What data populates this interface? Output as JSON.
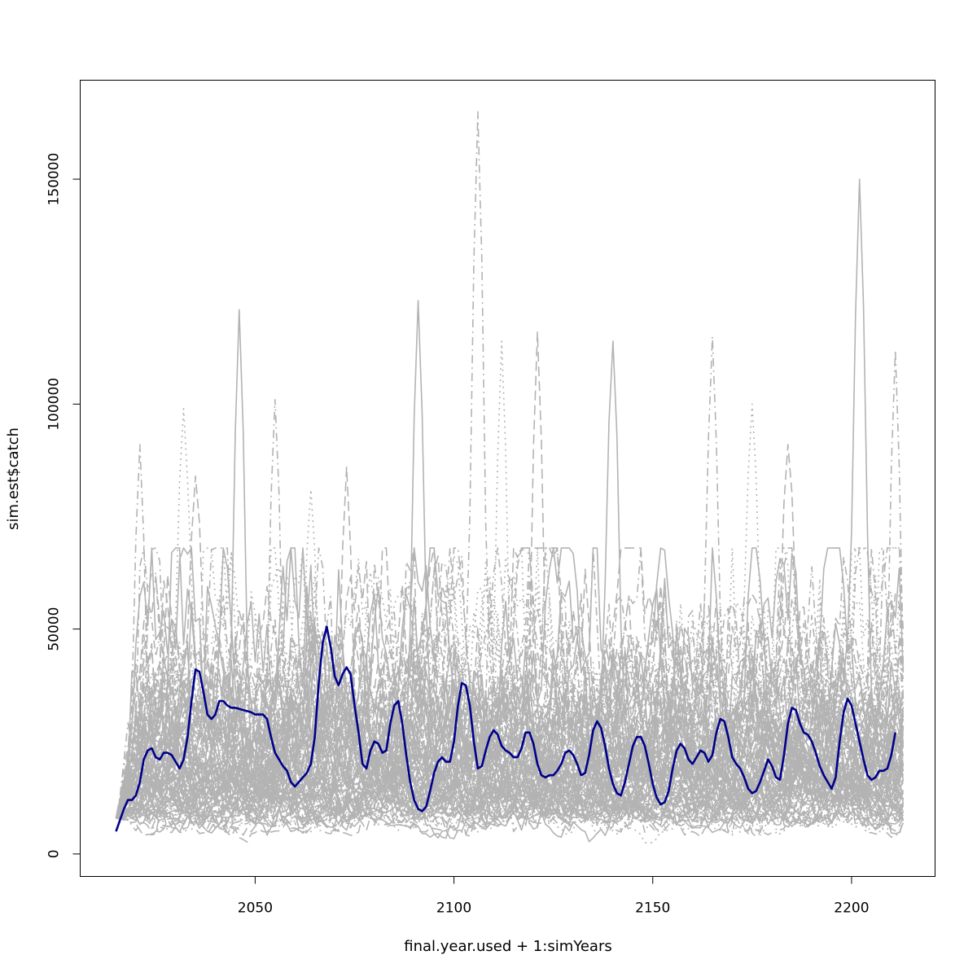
{
  "chart_data": {
    "type": "line",
    "title": "",
    "xlabel": "final.year.used + 1:simYears",
    "ylabel": "sim.est$catch",
    "xlim": [
      2006,
      2221
    ],
    "ylim": [
      -5000,
      172000
    ],
    "x_ticks": [
      2050,
      2100,
      2150,
      2200
    ],
    "y_ticks": [
      0,
      50000,
      100000,
      150000
    ],
    "x_tick_labels": [
      "2050",
      "2100",
      "2150",
      "2200"
    ],
    "y_tick_labels": [
      "0",
      "50000",
      "100000",
      "150000"
    ],
    "x_start": 2015,
    "x_end": 2213,
    "grid": false,
    "legend": "none",
    "colors": {
      "simulations": "#b3b3b3",
      "highlight": "#00008b",
      "axis": "#000000"
    },
    "background_series": {
      "count": 100,
      "color": "#b3b3b3",
      "line_styles": [
        "solid",
        "dashed",
        "dotted",
        "dashdot"
      ],
      "typical_range": [
        3000,
        60000
      ],
      "notable_peaks": [
        {
          "x": 2021,
          "y": 91000
        },
        {
          "x": 2032,
          "y": 99000
        },
        {
          "x": 2035,
          "y": 84000
        },
        {
          "x": 2046,
          "y": 121000
        },
        {
          "x": 2055,
          "y": 101000
        },
        {
          "x": 2064,
          "y": 81000
        },
        {
          "x": 2073,
          "y": 86000
        },
        {
          "x": 2091,
          "y": 123000
        },
        {
          "x": 2106,
          "y": 165000
        },
        {
          "x": 2112,
          "y": 114000
        },
        {
          "x": 2121,
          "y": 116000
        },
        {
          "x": 2140,
          "y": 114000
        },
        {
          "x": 2165,
          "y": 115000
        },
        {
          "x": 2175,
          "y": 100000
        },
        {
          "x": 2184,
          "y": 91000
        },
        {
          "x": 2202,
          "y": 150000
        },
        {
          "x": 2211,
          "y": 112000
        }
      ]
    },
    "series": [
      {
        "values": [
          [
            2015,
            5000
          ],
          [
            2017,
            10000
          ],
          [
            2018,
            12000
          ],
          [
            2019,
            12000
          ],
          [
            2020,
            13000
          ],
          [
            2021,
            16000
          ],
          [
            2022,
            21000
          ],
          [
            2023,
            23000
          ],
          [
            2024,
            23500
          ],
          [
            2025,
            21500
          ],
          [
            2026,
            21000
          ],
          [
            2027,
            22500
          ],
          [
            2028,
            22500
          ],
          [
            2029,
            22000
          ],
          [
            2030,
            20500
          ],
          [
            2031,
            19000
          ],
          [
            2032,
            21000
          ],
          [
            2033,
            26000
          ],
          [
            2034,
            34000
          ],
          [
            2035,
            41000
          ],
          [
            2036,
            40500
          ],
          [
            2037,
            36000
          ],
          [
            2038,
            31000
          ],
          [
            2039,
            30000
          ],
          [
            2040,
            31000
          ],
          [
            2041,
            34000
          ],
          [
            2042,
            34000
          ],
          [
            2043,
            33000
          ],
          [
            2044,
            32500
          ],
          [
            2045,
            32500
          ],
          [
            2047,
            32000
          ],
          [
            2049,
            31500
          ],
          [
            2050,
            31000
          ],
          [
            2052,
            31000
          ],
          [
            2053,
            30000
          ],
          [
            2054,
            26000
          ],
          [
            2055,
            22500
          ],
          [
            2056,
            21000
          ],
          [
            2057,
            19500
          ],
          [
            2058,
            18500
          ],
          [
            2059,
            16000
          ],
          [
            2060,
            15000
          ],
          [
            2062,
            17000
          ],
          [
            2063,
            18000
          ],
          [
            2064,
            20000
          ],
          [
            2065,
            26000
          ],
          [
            2066,
            38000
          ],
          [
            2067,
            47000
          ],
          [
            2068,
            50500
          ],
          [
            2069,
            46000
          ],
          [
            2070,
            39500
          ],
          [
            2071,
            37500
          ],
          [
            2072,
            40000
          ],
          [
            2073,
            41500
          ],
          [
            2074,
            40000
          ],
          [
            2075,
            33000
          ],
          [
            2076,
            27000
          ],
          [
            2077,
            20000
          ],
          [
            2078,
            19000
          ],
          [
            2079,
            23000
          ],
          [
            2080,
            25000
          ],
          [
            2081,
            24500
          ],
          [
            2082,
            22500
          ],
          [
            2083,
            23000
          ],
          [
            2084,
            29000
          ],
          [
            2085,
            33000
          ],
          [
            2086,
            34000
          ],
          [
            2087,
            29000
          ],
          [
            2088,
            22000
          ],
          [
            2089,
            16000
          ],
          [
            2090,
            12000
          ],
          [
            2091,
            10000
          ],
          [
            2092,
            9500
          ],
          [
            2093,
            10500
          ],
          [
            2094,
            14000
          ],
          [
            2095,
            18000
          ],
          [
            2096,
            20500
          ],
          [
            2097,
            21500
          ],
          [
            2098,
            20500
          ],
          [
            2099,
            20500
          ],
          [
            2100,
            25000
          ],
          [
            2101,
            33000
          ],
          [
            2102,
            38000
          ],
          [
            2103,
            37500
          ],
          [
            2104,
            33000
          ],
          [
            2105,
            25000
          ],
          [
            2106,
            19000
          ],
          [
            2107,
            19500
          ],
          [
            2108,
            23000
          ],
          [
            2109,
            26000
          ],
          [
            2110,
            27500
          ],
          [
            2111,
            26500
          ],
          [
            2112,
            24000
          ],
          [
            2113,
            23000
          ],
          [
            2114,
            22500
          ],
          [
            2115,
            21500
          ],
          [
            2116,
            21500
          ],
          [
            2117,
            23500
          ],
          [
            2118,
            27000
          ],
          [
            2119,
            27000
          ],
          [
            2120,
            24500
          ],
          [
            2121,
            20000
          ],
          [
            2122,
            17500
          ],
          [
            2123,
            17000
          ],
          [
            2124,
            17500
          ],
          [
            2125,
            17500
          ],
          [
            2126,
            18500
          ],
          [
            2127,
            20000
          ],
          [
            2128,
            22500
          ],
          [
            2129,
            23000
          ],
          [
            2130,
            22000
          ],
          [
            2131,
            20000
          ],
          [
            2132,
            17500
          ],
          [
            2133,
            18000
          ],
          [
            2134,
            22000
          ],
          [
            2135,
            27500
          ],
          [
            2136,
            29500
          ],
          [
            2137,
            28000
          ],
          [
            2138,
            24000
          ],
          [
            2139,
            19000
          ],
          [
            2140,
            15500
          ],
          [
            2141,
            13500
          ],
          [
            2142,
            13000
          ],
          [
            2143,
            16000
          ],
          [
            2144,
            20000
          ],
          [
            2145,
            24000
          ],
          [
            2146,
            26000
          ],
          [
            2147,
            26000
          ],
          [
            2148,
            24000
          ],
          [
            2149,
            20000
          ],
          [
            2150,
            15500
          ],
          [
            2151,
            12500
          ],
          [
            2152,
            11000
          ],
          [
            2153,
            11500
          ],
          [
            2154,
            14000
          ],
          [
            2155,
            19000
          ],
          [
            2156,
            23000
          ],
          [
            2157,
            24500
          ],
          [
            2158,
            23500
          ],
          [
            2159,
            21000
          ],
          [
            2160,
            20000
          ],
          [
            2161,
            21500
          ],
          [
            2162,
            23000
          ],
          [
            2163,
            22500
          ],
          [
            2164,
            20500
          ],
          [
            2165,
            22000
          ],
          [
            2166,
            27000
          ],
          [
            2167,
            30000
          ],
          [
            2168,
            29500
          ],
          [
            2169,
            26000
          ],
          [
            2170,
            21500
          ],
          [
            2171,
            20000
          ],
          [
            2172,
            19000
          ],
          [
            2173,
            17000
          ],
          [
            2174,
            14500
          ],
          [
            2175,
            13500
          ],
          [
            2176,
            14000
          ],
          [
            2177,
            16000
          ],
          [
            2178,
            18500
          ],
          [
            2179,
            21000
          ],
          [
            2180,
            19500
          ],
          [
            2181,
            17000
          ],
          [
            2182,
            16500
          ],
          [
            2183,
            22000
          ],
          [
            2184,
            29000
          ],
          [
            2185,
            32500
          ],
          [
            2186,
            32000
          ],
          [
            2187,
            29000
          ],
          [
            2188,
            27000
          ],
          [
            2189,
            26500
          ],
          [
            2190,
            25000
          ],
          [
            2191,
            22500
          ],
          [
            2192,
            19500
          ],
          [
            2193,
            17500
          ],
          [
            2194,
            16000
          ],
          [
            2195,
            14500
          ],
          [
            2196,
            17000
          ],
          [
            2197,
            25000
          ],
          [
            2198,
            31500
          ],
          [
            2199,
            34500
          ],
          [
            2200,
            33000
          ],
          [
            2201,
            29000
          ],
          [
            2202,
            25000
          ],
          [
            2203,
            21000
          ],
          [
            2204,
            17500
          ],
          [
            2205,
            16500
          ],
          [
            2206,
            17000
          ],
          [
            2207,
            18500
          ],
          [
            2208,
            18500
          ],
          [
            2209,
            19000
          ],
          [
            2210,
            22000
          ],
          [
            2211,
            27000
          ]
        ]
      }
    ]
  }
}
